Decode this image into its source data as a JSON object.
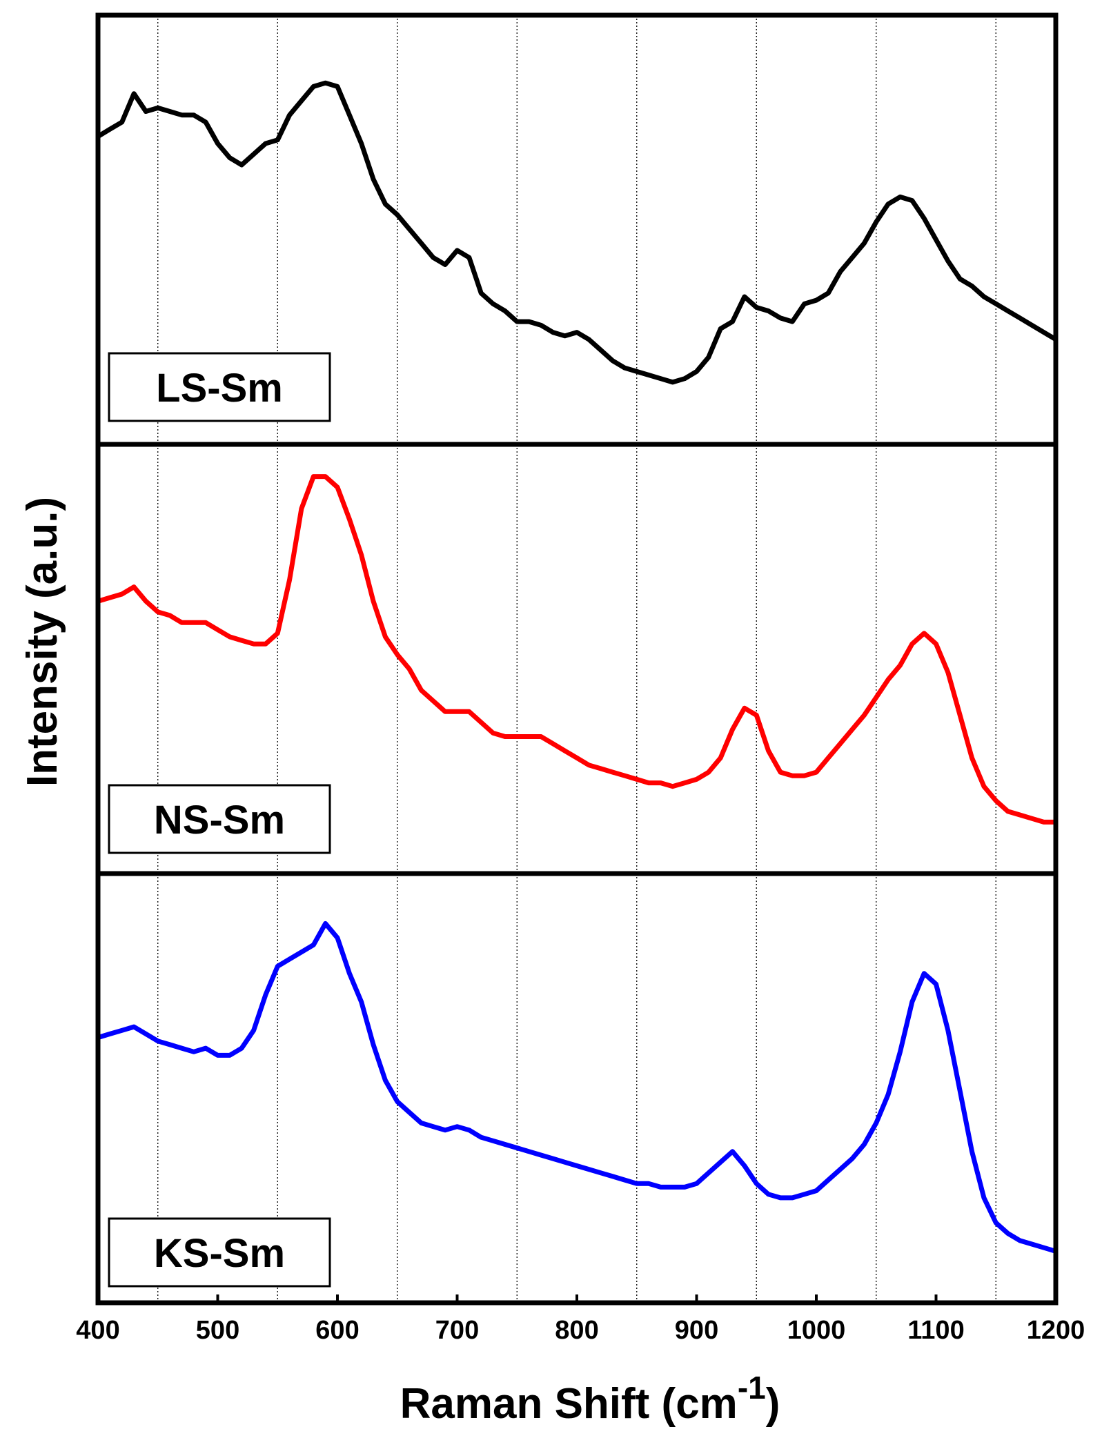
{
  "chart_data": {
    "type": "line",
    "title": "",
    "xlabel": "Raman Shift (cm",
    "xlabel_superscript": "-1",
    "xlabel_suffix": ")",
    "ylabel": "Intensity (a.u.)",
    "xlim": [
      400,
      1200
    ],
    "x_ticks": [
      "400",
      "500",
      "600",
      "700",
      "800",
      "900",
      "1000",
      "1100",
      "1200"
    ],
    "x_tick_values": [
      400,
      500,
      600,
      700,
      800,
      900,
      1000,
      1100,
      1200
    ],
    "grid": {
      "axis": "x",
      "style": "dotted",
      "values": [
        450,
        550,
        650,
        750,
        850,
        950,
        1050,
        1150
      ]
    },
    "ylim": [
      0,
      1
    ],
    "layout": "stacked-panels",
    "series": [
      {
        "name": "LS-Sm",
        "color": "#000000",
        "x": [
          400,
          410,
          420,
          430,
          440,
          450,
          460,
          470,
          480,
          490,
          500,
          510,
          520,
          530,
          540,
          550,
          560,
          570,
          580,
          590,
          600,
          610,
          620,
          630,
          640,
          650,
          660,
          670,
          680,
          690,
          700,
          710,
          720,
          730,
          740,
          750,
          760,
          770,
          780,
          790,
          800,
          810,
          820,
          830,
          840,
          850,
          860,
          870,
          880,
          890,
          900,
          910,
          920,
          930,
          940,
          950,
          960,
          970,
          980,
          990,
          1000,
          1010,
          1020,
          1030,
          1040,
          1050,
          1060,
          1070,
          1080,
          1090,
          1100,
          1110,
          1120,
          1130,
          1140,
          1150,
          1160,
          1170,
          1180,
          1190,
          1200
        ],
        "y": [
          0.72,
          0.74,
          0.76,
          0.84,
          0.79,
          0.8,
          0.79,
          0.78,
          0.78,
          0.76,
          0.7,
          0.66,
          0.64,
          0.67,
          0.7,
          0.71,
          0.78,
          0.82,
          0.86,
          0.87,
          0.86,
          0.78,
          0.7,
          0.6,
          0.53,
          0.5,
          0.46,
          0.42,
          0.38,
          0.36,
          0.4,
          0.38,
          0.28,
          0.25,
          0.23,
          0.2,
          0.2,
          0.19,
          0.17,
          0.16,
          0.17,
          0.15,
          0.12,
          0.09,
          0.07,
          0.06,
          0.05,
          0.04,
          0.03,
          0.04,
          0.06,
          0.1,
          0.18,
          0.2,
          0.27,
          0.24,
          0.23,
          0.21,
          0.2,
          0.25,
          0.26,
          0.28,
          0.34,
          0.38,
          0.42,
          0.48,
          0.53,
          0.55,
          0.54,
          0.49,
          0.43,
          0.37,
          0.32,
          0.3,
          0.27,
          0.25,
          0.23,
          0.21,
          0.19,
          0.17,
          0.15
        ]
      },
      {
        "name": "NS-Sm",
        "color": "#ff0000",
        "x": [
          400,
          410,
          420,
          430,
          440,
          450,
          460,
          470,
          480,
          490,
          500,
          510,
          520,
          530,
          540,
          550,
          560,
          570,
          580,
          590,
          600,
          610,
          620,
          630,
          640,
          650,
          660,
          670,
          680,
          690,
          700,
          710,
          720,
          730,
          740,
          750,
          760,
          770,
          780,
          790,
          800,
          810,
          820,
          830,
          840,
          850,
          860,
          870,
          880,
          890,
          900,
          910,
          920,
          930,
          940,
          950,
          960,
          970,
          980,
          990,
          1000,
          1010,
          1020,
          1030,
          1040,
          1050,
          1060,
          1070,
          1080,
          1090,
          1100,
          1110,
          1120,
          1130,
          1140,
          1150,
          1160,
          1170,
          1180,
          1190,
          1200
        ],
        "y": [
          0.62,
          0.63,
          0.64,
          0.66,
          0.62,
          0.59,
          0.58,
          0.56,
          0.56,
          0.56,
          0.54,
          0.52,
          0.51,
          0.5,
          0.5,
          0.53,
          0.68,
          0.88,
          0.97,
          0.97,
          0.94,
          0.85,
          0.75,
          0.62,
          0.52,
          0.47,
          0.43,
          0.37,
          0.34,
          0.31,
          0.31,
          0.31,
          0.28,
          0.25,
          0.24,
          0.24,
          0.24,
          0.24,
          0.22,
          0.2,
          0.18,
          0.16,
          0.15,
          0.14,
          0.13,
          0.12,
          0.11,
          0.11,
          0.1,
          0.11,
          0.12,
          0.14,
          0.18,
          0.26,
          0.32,
          0.3,
          0.2,
          0.14,
          0.13,
          0.13,
          0.14,
          0.18,
          0.22,
          0.26,
          0.3,
          0.35,
          0.4,
          0.44,
          0.5,
          0.53,
          0.5,
          0.42,
          0.3,
          0.18,
          0.1,
          0.06,
          0.03,
          0.02,
          0.01,
          0.0,
          0.0
        ]
      },
      {
        "name": "KS-Sm",
        "color": "#0000ff",
        "x": [
          400,
          410,
          420,
          430,
          440,
          450,
          460,
          470,
          480,
          490,
          500,
          510,
          520,
          530,
          540,
          550,
          560,
          570,
          580,
          590,
          600,
          610,
          620,
          630,
          640,
          650,
          660,
          670,
          680,
          690,
          700,
          710,
          720,
          730,
          740,
          750,
          760,
          770,
          780,
          790,
          800,
          810,
          820,
          830,
          840,
          850,
          860,
          870,
          880,
          890,
          900,
          910,
          920,
          930,
          940,
          950,
          960,
          970,
          980,
          990,
          1000,
          1010,
          1020,
          1030,
          1040,
          1050,
          1060,
          1070,
          1080,
          1090,
          1100,
          1110,
          1120,
          1130,
          1140,
          1150,
          1160,
          1170,
          1180,
          1190,
          1200
        ],
        "y": [
          0.6,
          0.61,
          0.62,
          0.63,
          0.61,
          0.59,
          0.58,
          0.57,
          0.56,
          0.57,
          0.55,
          0.55,
          0.57,
          0.62,
          0.72,
          0.8,
          0.82,
          0.84,
          0.86,
          0.92,
          0.88,
          0.78,
          0.7,
          0.58,
          0.48,
          0.42,
          0.39,
          0.36,
          0.35,
          0.34,
          0.35,
          0.34,
          0.32,
          0.31,
          0.3,
          0.29,
          0.28,
          0.27,
          0.26,
          0.25,
          0.24,
          0.23,
          0.22,
          0.21,
          0.2,
          0.19,
          0.19,
          0.18,
          0.18,
          0.18,
          0.19,
          0.22,
          0.25,
          0.28,
          0.24,
          0.19,
          0.16,
          0.15,
          0.15,
          0.16,
          0.17,
          0.2,
          0.23,
          0.26,
          0.3,
          0.36,
          0.44,
          0.56,
          0.7,
          0.78,
          0.75,
          0.62,
          0.45,
          0.28,
          0.15,
          0.08,
          0.05,
          0.03,
          0.02,
          0.01,
          0.0
        ]
      }
    ],
    "annotations": [
      "LS-Sm",
      "NS-Sm",
      "KS-Sm"
    ]
  }
}
